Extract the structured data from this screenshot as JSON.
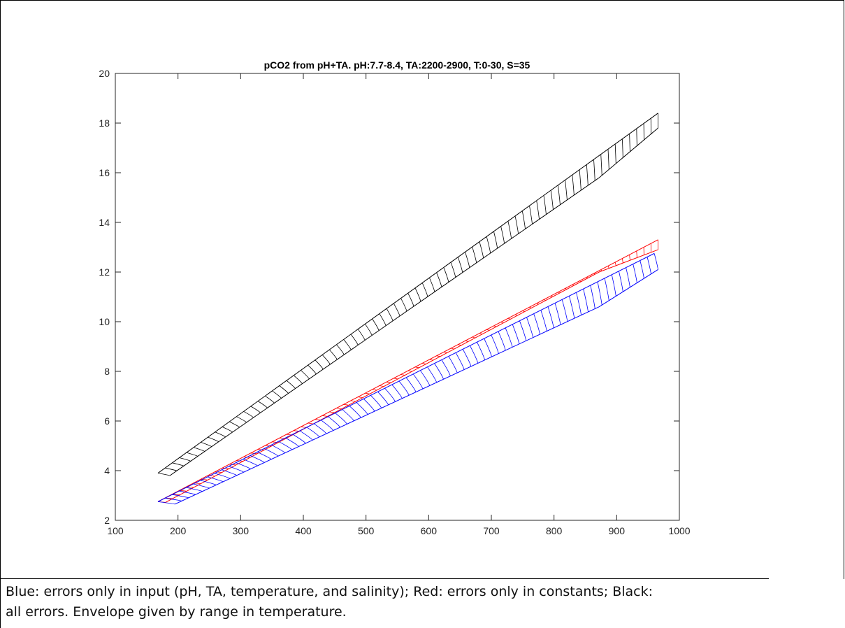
{
  "chart_data": {
    "type": "line",
    "title": "pCO2 from pH+TA. pH:7.7-8.4, TA:2200-2900, T:0-30, S=35",
    "xlabel": "",
    "ylabel": "",
    "xlim": [
      100,
      1000
    ],
    "ylim": [
      2,
      20
    ],
    "x_ticks": [
      "100",
      "200",
      "300",
      "400",
      "500",
      "600",
      "700",
      "800",
      "900",
      "1000"
    ],
    "y_ticks": [
      "2",
      "4",
      "6",
      "8",
      "10",
      "12",
      "14",
      "16",
      "18",
      "20"
    ],
    "grid": false,
    "envelope_count": 70,
    "series": [
      {
        "color": "#000000",
        "upper_start": [
          168,
          3.9
        ],
        "upper_end": [
          966,
          18.4
        ],
        "lower_start": [
          187,
          3.8
        ],
        "lower_end": [
          872,
          15.8
        ],
        "lower_final": [
          966,
          17.8
        ]
      },
      {
        "color": "#ff0000",
        "upper_start": [
          168,
          2.75
        ],
        "upper_end": [
          966,
          13.3
        ],
        "lower_start": [
          180,
          2.72
        ],
        "lower_end": [
          872,
          12.0
        ],
        "lower_final": [
          966,
          12.9
        ]
      },
      {
        "color": "#0000ff",
        "upper_start": [
          168,
          2.75
        ],
        "upper_end": [
          960,
          12.75
        ],
        "lower_start": [
          195,
          2.65
        ],
        "lower_end": [
          872,
          10.6
        ],
        "lower_final": [
          966,
          12.1
        ]
      }
    ]
  },
  "caption": {
    "line1": "Blue: errors only in input (pH, TA, temperature, and salinity); Red: errors only in constants; Black:",
    "line2": "all errors. Envelope given by range in temperature."
  }
}
